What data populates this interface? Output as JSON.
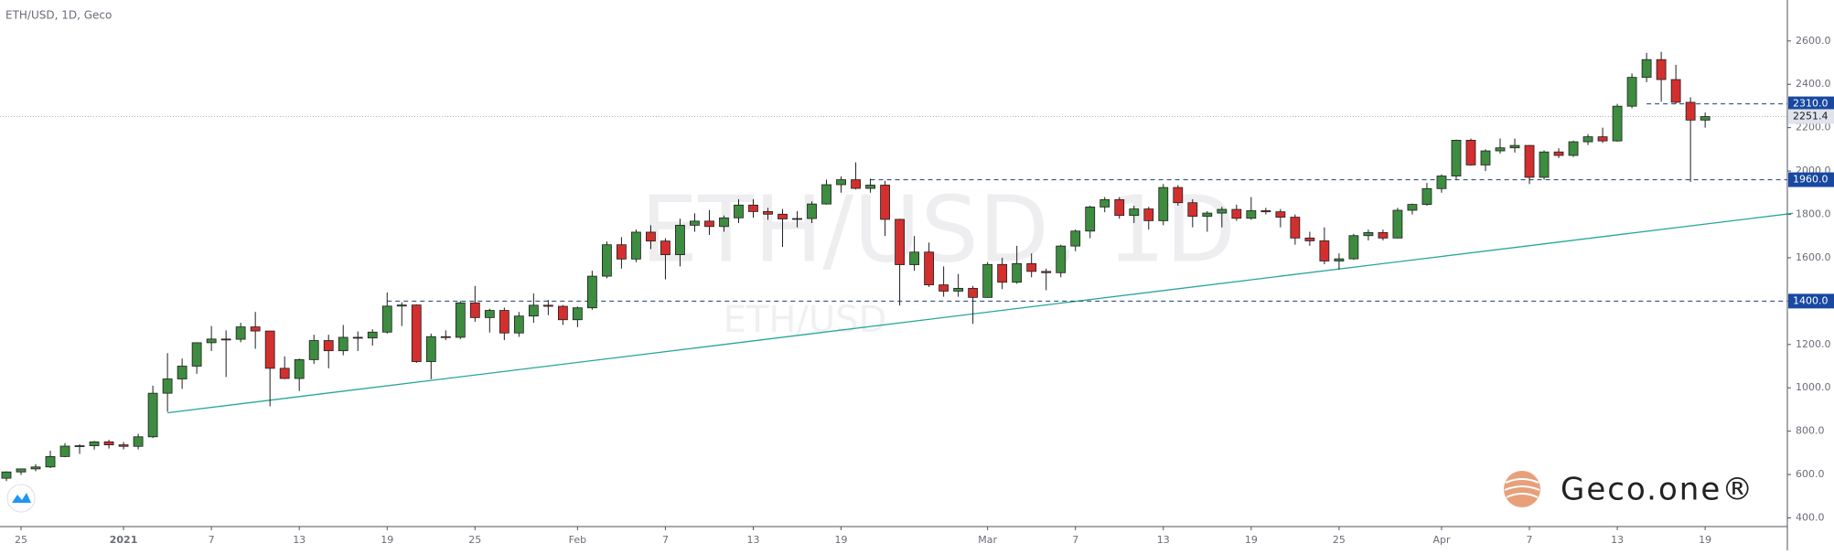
{
  "chart_data": {
    "type": "candlestick",
    "title": "ETH/USD, 1D, Geco",
    "watermark": "ETH/USD, 1D",
    "watermark_sub": "ETH/USD",
    "logo": "Geco.one®",
    "x": [
      "12-24",
      "12-25",
      "12-26",
      "12-27",
      "12-28",
      "12-29",
      "12-30",
      "12-31",
      "01-01",
      "01-02",
      "01-03",
      "01-04",
      "01-05",
      "01-06",
      "01-07",
      "01-08",
      "01-09",
      "01-10",
      "01-11",
      "01-12",
      "01-13",
      "01-14",
      "01-15",
      "01-16",
      "01-17",
      "01-18",
      "01-19",
      "01-20",
      "01-21",
      "01-22",
      "01-23",
      "01-24",
      "01-25",
      "01-26",
      "01-27",
      "01-28",
      "01-29",
      "01-30",
      "01-31",
      "02-01",
      "02-02",
      "02-03",
      "02-04",
      "02-05",
      "02-06",
      "02-07",
      "02-08",
      "02-09",
      "02-10",
      "02-11",
      "02-12",
      "02-13",
      "02-14",
      "02-15",
      "02-16",
      "02-17",
      "02-18",
      "02-19",
      "02-20",
      "02-21",
      "02-22",
      "02-23",
      "02-24",
      "02-25",
      "02-26",
      "02-27",
      "02-28",
      "03-01",
      "03-02",
      "03-03",
      "03-04",
      "03-05",
      "03-06",
      "03-07",
      "03-08",
      "03-09",
      "03-10",
      "03-11",
      "03-12",
      "03-13",
      "03-14",
      "03-15",
      "03-16",
      "03-17",
      "03-18",
      "03-19",
      "03-20",
      "03-21",
      "03-22",
      "03-23",
      "03-24",
      "03-25",
      "03-26",
      "03-27",
      "03-28",
      "03-29",
      "03-30",
      "03-31",
      "04-01",
      "04-02",
      "04-03",
      "04-04",
      "04-05",
      "04-06",
      "04-07",
      "04-08",
      "04-09",
      "04-10",
      "04-11",
      "04-12",
      "04-13",
      "04-14",
      "04-15",
      "04-16",
      "04-17",
      "04-18",
      "04-19"
    ],
    "open": [
      583,
      612,
      626,
      635,
      683,
      731,
      733,
      751,
      737,
      730,
      774,
      975,
      1041,
      1100,
      1208,
      1225,
      1224,
      1281,
      1262,
      1090,
      1043,
      1130,
      1218,
      1171,
      1233,
      1230,
      1257,
      1377,
      1382,
      1121,
      1236,
      1233,
      1392,
      1324,
      1357,
      1253,
      1331,
      1381,
      1376,
      1314,
      1369,
      1515,
      1660,
      1594,
      1718,
      1677,
      1614,
      1750,
      1769,
      1744,
      1784,
      1843,
      1813,
      1801,
      1779,
      1781,
      1848,
      1937,
      1960,
      1920,
      1935,
      1777,
      1568,
      1626,
      1475,
      1446,
      1459,
      1417,
      1569,
      1487,
      1573,
      1537,
      1531,
      1654,
      1723,
      1834,
      1868,
      1795,
      1825,
      1771,
      1924,
      1854,
      1791,
      1806,
      1823,
      1782,
      1817,
      1812,
      1787,
      1691,
      1678,
      1585,
      1595,
      1702,
      1716,
      1691,
      1819,
      1846,
      1919,
      1977,
      2142,
      2028,
      2093,
      2107,
      2118,
      1971,
      2088,
      2072,
      2135,
      2158,
      2139,
      2299,
      2432,
      2514,
      2422,
      2317,
      2235
    ],
    "high": [
      615,
      627,
      648,
      710,
      745,
      740,
      755,
      760,
      750,
      788,
      1010,
      1160,
      1135,
      1210,
      1285,
      1265,
      1300,
      1350,
      1262,
      1145,
      1135,
      1245,
      1245,
      1290,
      1260,
      1270,
      1440,
      1395,
      1385,
      1250,
      1265,
      1400,
      1470,
      1365,
      1370,
      1350,
      1435,
      1405,
      1382,
      1375,
      1540,
      1675,
      1695,
      1730,
      1750,
      1690,
      1780,
      1805,
      1820,
      1795,
      1870,
      1870,
      1830,
      1825,
      1815,
      1860,
      1960,
      1975,
      2040,
      1965,
      1955,
      1780,
      1700,
      1670,
      1560,
      1525,
      1470,
      1580,
      1600,
      1655,
      1620,
      1550,
      1660,
      1730,
      1840,
      1880,
      1880,
      1840,
      1835,
      1940,
      1935,
      1870,
      1815,
      1835,
      1845,
      1880,
      1830,
      1825,
      1800,
      1720,
      1740,
      1620,
      1710,
      1730,
      1730,
      1830,
      1850,
      1945,
      1985,
      2145,
      2150,
      2100,
      2150,
      2150,
      2120,
      2095,
      2105,
      2140,
      2170,
      2200,
      2310,
      2450,
      2545,
      2550,
      2490,
      2340,
      2270
    ],
    "low": [
      570,
      598,
      615,
      630,
      680,
      695,
      715,
      720,
      716,
      716,
      768,
      890,
      995,
      1065,
      1170,
      1050,
      1210,
      1180,
      915,
      1040,
      985,
      1110,
      1090,
      1150,
      1170,
      1195,
      1250,
      1285,
      1115,
      1040,
      1220,
      1225,
      1305,
      1255,
      1220,
      1235,
      1300,
      1335,
      1290,
      1280,
      1360,
      1505,
      1550,
      1580,
      1640,
      1500,
      1560,
      1720,
      1705,
      1720,
      1760,
      1785,
      1775,
      1650,
      1740,
      1760,
      1845,
      1900,
      1915,
      1900,
      1700,
      1380,
      1540,
      1465,
      1420,
      1420,
      1295,
      1415,
      1455,
      1480,
      1510,
      1450,
      1510,
      1630,
      1690,
      1810,
      1780,
      1760,
      1730,
      1750,
      1840,
      1740,
      1720,
      1740,
      1770,
      1775,
      1800,
      1740,
      1660,
      1655,
      1570,
      1545,
      1590,
      1680,
      1680,
      1690,
      1800,
      1840,
      1900,
      1960,
      2025,
      2000,
      2080,
      2085,
      1940,
      1960,
      2060,
      2065,
      2120,
      2130,
      2135,
      2290,
      2410,
      2320,
      2310,
      1950,
      2200
    ],
    "close": [
      612,
      626,
      635,
      683,
      731,
      733,
      751,
      737,
      730,
      774,
      975,
      1041,
      1100,
      1208,
      1225,
      1224,
      1281,
      1262,
      1090,
      1043,
      1130,
      1218,
      1171,
      1233,
      1230,
      1257,
      1377,
      1382,
      1121,
      1236,
      1233,
      1392,
      1324,
      1357,
      1253,
      1331,
      1381,
      1376,
      1314,
      1369,
      1515,
      1660,
      1594,
      1718,
      1677,
      1614,
      1750,
      1769,
      1744,
      1784,
      1843,
      1813,
      1801,
      1779,
      1781,
      1848,
      1937,
      1960,
      1920,
      1935,
      1777,
      1568,
      1626,
      1475,
      1446,
      1459,
      1417,
      1569,
      1487,
      1573,
      1537,
      1531,
      1654,
      1723,
      1834,
      1868,
      1795,
      1825,
      1771,
      1924,
      1854,
      1791,
      1806,
      1823,
      1782,
      1817,
      1812,
      1787,
      1691,
      1678,
      1585,
      1595,
      1702,
      1716,
      1691,
      1819,
      1846,
      1919,
      1977,
      2142,
      2028,
      2093,
      2107,
      2118,
      1971,
      2088,
      2072,
      2135,
      2158,
      2139,
      2299,
      2432,
      2514,
      2422,
      2317,
      2235,
      2251
    ],
    "up_color": "#3d8c40",
    "down_color": "#d32f2f",
    "ylim": [
      350,
      2700
    ],
    "yticks": [
      {
        "value": 400,
        "label": "400.0"
      },
      {
        "value": 600,
        "label": "600.0"
      },
      {
        "value": 800,
        "label": "800.0"
      },
      {
        "value": 1000,
        "label": "1000.0"
      },
      {
        "value": 1200,
        "label": "1200.0"
      },
      {
        "value": 1400,
        "label": "1400.0"
      },
      {
        "value": 1600,
        "label": "1600.0"
      },
      {
        "value": 1800,
        "label": "1800.0"
      },
      {
        "value": 2000,
        "label": "2000.0"
      },
      {
        "value": 2200,
        "label": "2200.0"
      },
      {
        "value": 2400,
        "label": "2400.0"
      },
      {
        "value": 2600,
        "label": "2600.0"
      }
    ],
    "xticks": [
      {
        "value": "12-25",
        "label": "25"
      },
      {
        "value": "01-01",
        "label": "2021"
      },
      {
        "value": "01-07",
        "label": "7"
      },
      {
        "value": "01-13",
        "label": "13"
      },
      {
        "value": "01-19",
        "label": "19"
      },
      {
        "value": "01-25",
        "label": "25"
      },
      {
        "value": "02-01",
        "label": "Feb"
      },
      {
        "value": "02-07",
        "label": "7"
      },
      {
        "value": "02-13",
        "label": "13"
      },
      {
        "value": "02-19",
        "label": "19"
      },
      {
        "value": "03-01",
        "label": "Mar"
      },
      {
        "value": "03-07",
        "label": "7"
      },
      {
        "value": "03-13",
        "label": "13"
      },
      {
        "value": "03-19",
        "label": "19"
      },
      {
        "value": "03-25",
        "label": "25"
      },
      {
        "value": "04-01",
        "label": "Apr"
      },
      {
        "value": "04-07",
        "label": "7"
      },
      {
        "value": "04-13",
        "label": "13"
      },
      {
        "value": "04-19",
        "label": "19"
      }
    ],
    "levels": [
      {
        "value": 2310,
        "label": "2310.0",
        "start": "04-15"
      },
      {
        "value": 1960,
        "label": "1960.0",
        "start": "02-21"
      },
      {
        "value": 1400,
        "label": "1400.0",
        "start": "01-19"
      }
    ],
    "last_price": {
      "value": 2251.4,
      "label": "2251.4"
    },
    "trendline": {
      "x": [
        "01-04",
        "04-25"
      ],
      "y": [
        885,
        1805
      ],
      "color": "#26a69a"
    }
  }
}
